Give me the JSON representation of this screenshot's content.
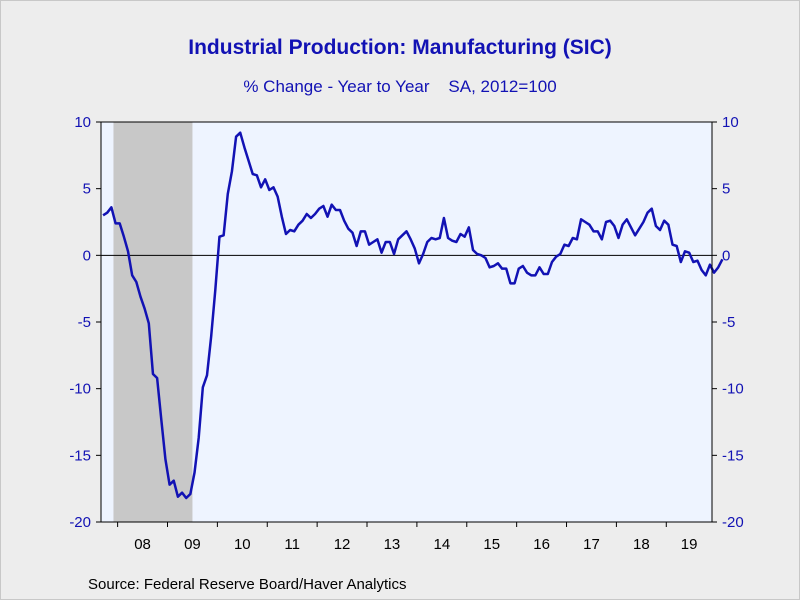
{
  "chart_data": {
    "type": "line",
    "title": "Industrial Production: Manufacturing (SIC)",
    "subtitle": "% Change - Year to Year    SA, 2012=100",
    "source": "Source:  Federal Reserve Board/Haver Analytics",
    "frequency": "monthly",
    "x_start": "2007-09",
    "x_end": "2019-11",
    "xtick_labels": [
      "08",
      "09",
      "10",
      "11",
      "12",
      "13",
      "14",
      "15",
      "16",
      "17",
      "18",
      "19"
    ],
    "ylim": [
      -20,
      10
    ],
    "yticks": [
      10,
      5,
      0,
      -5,
      -10,
      -15,
      -20
    ],
    "ytick_labels_left": [
      "10",
      "5",
      "0",
      "-5",
      "-10",
      "-15",
      "-20"
    ],
    "ytick_labels_right": [
      "10",
      "5",
      "0",
      "-5",
      "-10",
      "-15",
      "-20"
    ],
    "zero_line": true,
    "grid": false,
    "recession_shading": {
      "start": "2007-12",
      "end": "2009-06",
      "color": "#c8c8c8"
    },
    "colors": {
      "line": "#1212b4",
      "plot_background": "#eef4ff",
      "text": "#1212b4"
    },
    "series": [
      {
        "values": [
          3.0,
          3.2,
          3.6,
          2.4,
          2.4,
          1.4,
          0.3,
          -1.5,
          -2.0,
          -3.1,
          -4.0,
          -5.1,
          -8.9,
          -9.2,
          -12.3,
          -15.3,
          -17.2,
          -16.9,
          -18.1,
          -17.8,
          -18.2,
          -17.9,
          -16.3,
          -13.7,
          -9.9,
          -9.0,
          -6.1,
          -2.6,
          1.4,
          1.5,
          4.6,
          6.3,
          8.9,
          9.2,
          8.1,
          7.1,
          6.1,
          6.0,
          5.1,
          5.7,
          4.9,
          5.1,
          4.4,
          2.9,
          1.6,
          1.9,
          1.8,
          2.3,
          2.6,
          3.1,
          2.8,
          3.1,
          3.5,
          3.7,
          2.9,
          3.8,
          3.4,
          3.4,
          2.6,
          2.0,
          1.7,
          0.7,
          1.8,
          1.8,
          0.8,
          1.0,
          1.2,
          0.2,
          1.0,
          1.0,
          0.1,
          1.2,
          1.5,
          1.8,
          1.2,
          0.5,
          -0.6,
          0.1,
          1.0,
          1.3,
          1.2,
          1.3,
          2.8,
          1.3,
          1.1,
          1.0,
          1.6,
          1.4,
          2.1,
          0.4,
          0.1,
          0.0,
          -0.2,
          -0.9,
          -0.8,
          -0.6,
          -1.0,
          -1.0,
          -2.1,
          -2.1,
          -1.0,
          -0.8,
          -1.3,
          -1.5,
          -1.5,
          -0.9,
          -1.4,
          -1.4,
          -0.5,
          -0.1,
          0.1,
          0.8,
          0.7,
          1.3,
          1.2,
          2.7,
          2.5,
          2.3,
          1.8,
          1.8,
          1.2,
          2.5,
          2.6,
          2.2,
          1.3,
          2.3,
          2.7,
          2.1,
          1.5,
          2.0,
          2.5,
          3.2,
          3.5,
          2.2,
          1.9,
          2.6,
          2.3,
          0.8,
          0.7,
          -0.5,
          0.3,
          0.2,
          -0.5,
          -0.4,
          -1.1,
          -1.5,
          -0.7,
          -1.3,
          -0.9,
          -0.3
        ]
      }
    ]
  }
}
